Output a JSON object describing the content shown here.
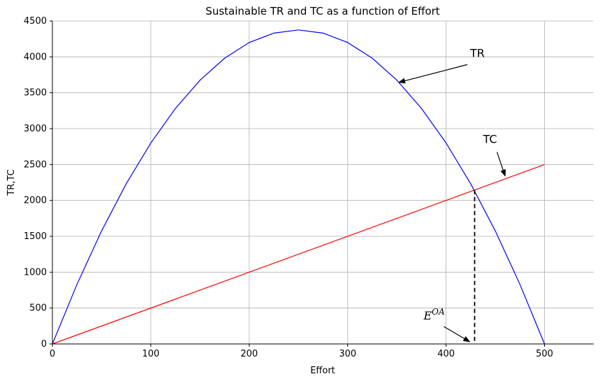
{
  "chart_data": {
    "type": "line",
    "title": "Sustainable TR and TC as a function of Effort",
    "xlabel": "Effort",
    "ylabel": "TR,TC",
    "xlim": [
      0,
      550
    ],
    "ylim": [
      0,
      4500
    ],
    "xticks": [
      0,
      100,
      200,
      300,
      400,
      500
    ],
    "yticks": [
      0,
      500,
      1000,
      1500,
      2000,
      2500,
      3000,
      3500,
      4000,
      4500
    ],
    "grid": true,
    "series": [
      {
        "name": "TR",
        "color": "#0000ff",
        "x": [
          0,
          25,
          50,
          75,
          100,
          125,
          150,
          175,
          200,
          225,
          250,
          275,
          300,
          325,
          350,
          375,
          400,
          425,
          450,
          475,
          500
        ],
        "y": [
          0,
          831,
          1575,
          2231,
          2800,
          3281,
          3675,
          3981,
          4200,
          4331,
          4375,
          4331,
          4200,
          3981,
          3675,
          3281,
          2800,
          2231,
          1575,
          831,
          0
        ]
      },
      {
        "name": "TC",
        "color": "#ff0000",
        "x": [
          0,
          500
        ],
        "y": [
          0,
          2500
        ]
      }
    ],
    "vline": {
      "x": 429,
      "y_top": 2145,
      "style": "dashed",
      "color": "#000000"
    },
    "annotations": [
      {
        "text": "TR",
        "text_x": 423,
        "text_y": 3980,
        "arrow_x": 352,
        "arrow_y": 3645
      },
      {
        "text": "TC",
        "text_x": 434,
        "text_y": 2780,
        "arrow_x": 460,
        "arrow_y": 2340
      },
      {
        "text": "E",
        "superscript": "OA",
        "text_x": 380,
        "text_y": 340,
        "arrow_x": 424,
        "arrow_y": 30
      }
    ]
  }
}
